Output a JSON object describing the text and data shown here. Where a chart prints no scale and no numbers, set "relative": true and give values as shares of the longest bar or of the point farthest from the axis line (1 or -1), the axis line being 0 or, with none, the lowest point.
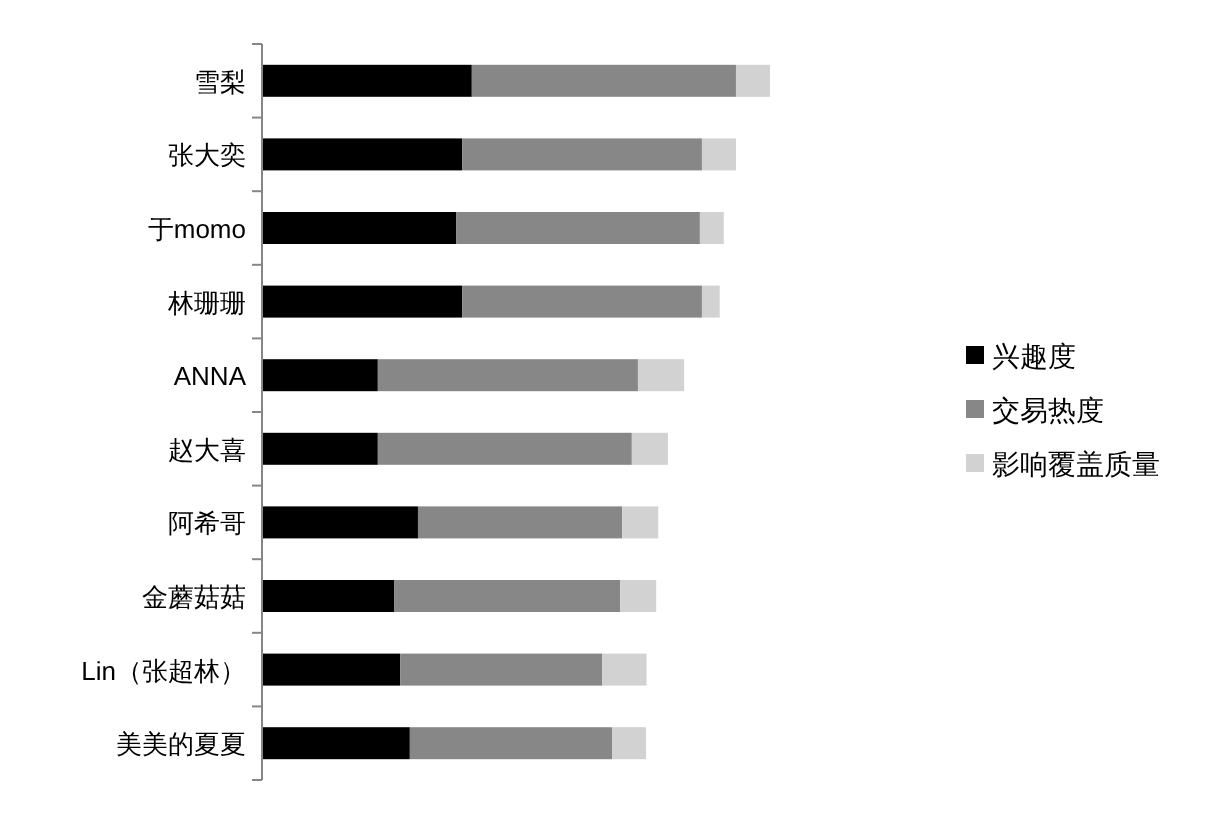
{
  "chart_data": {
    "type": "bar",
    "orientation": "horizontal",
    "stacked": true,
    "relative": true,
    "legend": "right",
    "categories": [
      "雪梨",
      "张大奕",
      "于momo",
      "林珊珊",
      "ANNA",
      "赵大喜",
      "阿希哥",
      "金蘑菇菇",
      "Lin（张超林）",
      "美美的夏夏"
    ],
    "series": [
      {
        "name": "兴趣度",
        "color": "#000000",
        "values": [
          0.413,
          0.394,
          0.382,
          0.394,
          0.228,
          0.228,
          0.307,
          0.26,
          0.272,
          0.291
        ]
      },
      {
        "name": "交易热度",
        "color": "#878787",
        "values": [
          0.52,
          0.472,
          0.48,
          0.472,
          0.512,
          0.5,
          0.402,
          0.445,
          0.398,
          0.398
        ]
      },
      {
        "name": "影响覆盖质量",
        "color": "#d2d2d2",
        "values": [
          0.067,
          0.067,
          0.047,
          0.035,
          0.091,
          0.071,
          0.071,
          0.071,
          0.087,
          0.067
        ]
      }
    ]
  }
}
